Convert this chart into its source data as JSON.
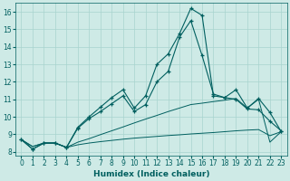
{
  "xlabel": "Humidex (Indice chaleur)",
  "xlim": [
    -0.5,
    23.5
  ],
  "ylim": [
    7.8,
    16.5
  ],
  "xticks": [
    0,
    1,
    2,
    3,
    4,
    5,
    6,
    7,
    8,
    9,
    10,
    11,
    12,
    13,
    14,
    15,
    16,
    17,
    18,
    19,
    20,
    21,
    22,
    23
  ],
  "yticks": [
    8,
    9,
    10,
    11,
    12,
    13,
    14,
    15,
    16
  ],
  "bg_color": "#ceeae6",
  "grid_color": "#a8d4cf",
  "line_color": "#005f5f",
  "line1_x": [
    0,
    1,
    2,
    3,
    4,
    5,
    6,
    7,
    8,
    9,
    10,
    11,
    12,
    13,
    14,
    15,
    16,
    17,
    18,
    19,
    20,
    21,
    22,
    23
  ],
  "line1_y": [
    8.7,
    8.15,
    8.5,
    8.5,
    8.25,
    9.4,
    10.0,
    10.55,
    11.1,
    11.55,
    10.5,
    11.2,
    13.0,
    13.6,
    14.75,
    16.2,
    15.8,
    11.2,
    11.1,
    11.55,
    10.5,
    11.05,
    10.25,
    9.15
  ],
  "line2_x": [
    0,
    1,
    2,
    3,
    4,
    5,
    6,
    7,
    8,
    9,
    10,
    11,
    12,
    13,
    14,
    15,
    16,
    17,
    18,
    19,
    20,
    21,
    22,
    23
  ],
  "line2_y": [
    8.7,
    8.15,
    8.5,
    8.5,
    8.25,
    9.35,
    9.9,
    10.3,
    10.75,
    11.2,
    10.3,
    10.7,
    12.0,
    12.6,
    14.55,
    15.5,
    13.5,
    11.3,
    11.1,
    11.0,
    10.45,
    10.4,
    9.75,
    9.2
  ],
  "line3_x": [
    0,
    1,
    2,
    3,
    4,
    5,
    6,
    7,
    8,
    9,
    10,
    11,
    12,
    13,
    14,
    15,
    16,
    17,
    18,
    19,
    20,
    21,
    22,
    23
  ],
  "line3_y": [
    8.7,
    8.3,
    8.5,
    8.5,
    8.25,
    8.4,
    8.5,
    8.58,
    8.65,
    8.72,
    8.78,
    8.83,
    8.88,
    8.93,
    8.97,
    9.02,
    9.06,
    9.1,
    9.15,
    9.2,
    9.24,
    9.27,
    8.92,
    9.15
  ],
  "line4_x": [
    0,
    1,
    2,
    3,
    4,
    5,
    6,
    7,
    8,
    9,
    10,
    11,
    12,
    13,
    14,
    15,
    16,
    17,
    18,
    19,
    20,
    21,
    22,
    23
  ],
  "line4_y": [
    8.7,
    8.3,
    8.5,
    8.5,
    8.25,
    8.55,
    8.75,
    8.98,
    9.2,
    9.42,
    9.65,
    9.87,
    10.08,
    10.3,
    10.5,
    10.7,
    10.78,
    10.87,
    10.95,
    11.05,
    10.5,
    11.0,
    8.55,
    9.15
  ]
}
